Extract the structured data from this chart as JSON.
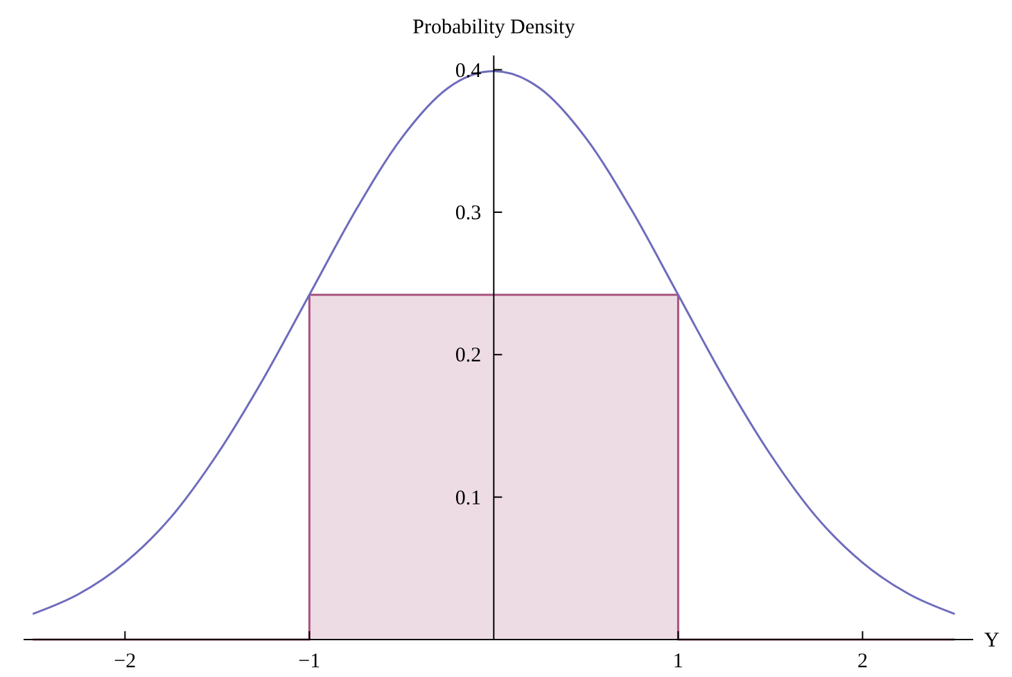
{
  "chart_data": {
    "type": "line",
    "title": "Probability Density",
    "xlabel": "Y",
    "xlim": [
      -2.55,
      2.6
    ],
    "ylim": [
      0,
      0.41
    ],
    "xticks": [
      {
        "value": -2,
        "label": "−2"
      },
      {
        "value": -1,
        "label": "−1"
      },
      1,
      2
    ],
    "yticks": [
      0.1,
      0.2,
      0.3,
      0.4
    ],
    "grid": false,
    "series": [
      {
        "type": "area",
        "color": "#a8527c",
        "x": [
          -2.5,
          -1,
          -1,
          1,
          1,
          2.5
        ],
        "values": [
          0,
          0,
          0.242,
          0.242,
          0,
          0
        ]
      },
      {
        "color": "#6e6cbc",
        "x": [
          -2.5,
          -2.25,
          -2,
          -1.75,
          -1.5,
          -1.25,
          -1,
          -0.75,
          -0.5,
          -0.25,
          0,
          0.25,
          0.5,
          0.75,
          1,
          1.25,
          1.5,
          1.75,
          2,
          2.25,
          2.5
        ],
        "values": [
          0.018,
          0.032,
          0.054,
          0.086,
          0.13,
          0.183,
          0.242,
          0.301,
          0.352,
          0.387,
          0.399,
          0.387,
          0.352,
          0.301,
          0.242,
          0.183,
          0.13,
          0.086,
          0.054,
          0.032,
          0.018
        ]
      }
    ]
  }
}
